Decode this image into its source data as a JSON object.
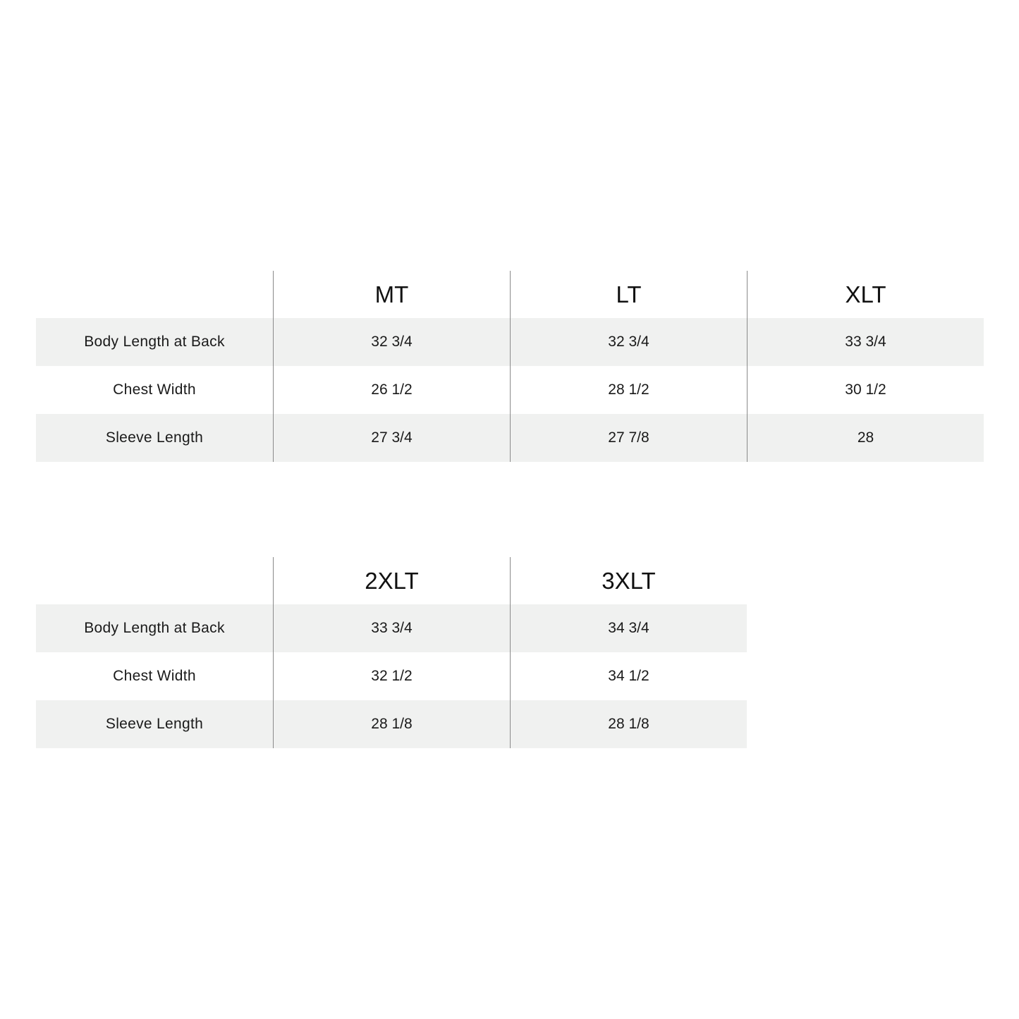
{
  "tables": [
    {
      "sizes": [
        "MT",
        "LT",
        "XLT"
      ],
      "rows": [
        {
          "label": "Body Length at Back",
          "values": [
            "32 3/4",
            "32 3/4",
            "33 3/4"
          ]
        },
        {
          "label": "Chest Width",
          "values": [
            "26 1/2",
            "28 1/2",
            "30 1/2"
          ]
        },
        {
          "label": "Sleeve Length",
          "values": [
            "27 3/4",
            "27 7/8",
            "28"
          ]
        }
      ]
    },
    {
      "sizes": [
        "2XLT",
        "3XLT"
      ],
      "rows": [
        {
          "label": "Body Length at Back",
          "values": [
            "33 3/4",
            "34 3/4"
          ]
        },
        {
          "label": "Chest Width",
          "values": [
            "32 1/2",
            "34 1/2"
          ]
        },
        {
          "label": "Sleeve Length",
          "values": [
            "28 1/8",
            "28 1/8"
          ]
        }
      ]
    }
  ],
  "colors": {
    "shaded_row": "#f0f1f0",
    "divider": "#8a8a8a",
    "text": "#1a1a1a"
  }
}
